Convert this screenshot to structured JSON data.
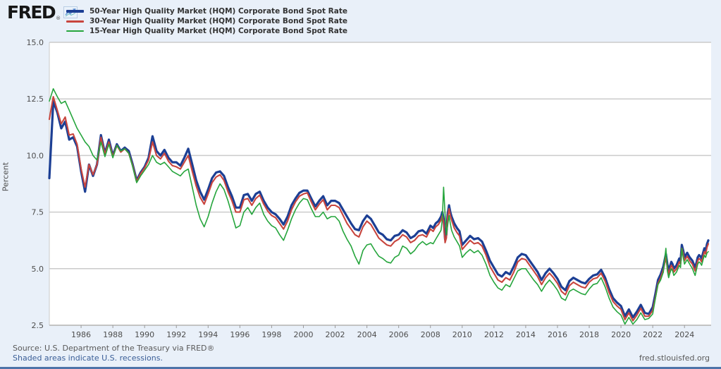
{
  "branding": {
    "logo_text": "FRED",
    "registered_mark": "®",
    "logo_icon": "sparkline-chart-icon"
  },
  "footer": {
    "source": "Source: U.S. Department of the Treasury via FRED®",
    "recessions_note": "Shaded areas indicate U.S. recessions.",
    "site_url": "fred.stlouisfed.org"
  },
  "colors": {
    "background": "#e9f0f9",
    "plot_background": "#ffffff",
    "gridline": "#cbcbcb",
    "axis_line": "#c3c3c3",
    "axis_text": "#4d4d4d",
    "legend_text": "#333333",
    "source_text": "#595959",
    "link_text": "#3a5e97",
    "bottom_bar": "#4e74a9"
  },
  "chart_data": {
    "type": "line",
    "title": "",
    "xlabel": "",
    "ylabel": "Percent",
    "legend_position": "top-left",
    "grid": true,
    "ylim": [
      2.5,
      15.0
    ],
    "xlim": [
      1984.0,
      2025.5
    ],
    "yticks": [
      2.5,
      5.0,
      7.5,
      10.0,
      12.5,
      15.0
    ],
    "ytick_labels": [
      "2.5",
      "5.0",
      "7.5",
      "10.0",
      "12.5",
      "15.0"
    ],
    "xticks": [
      1986,
      1988,
      1990,
      1992,
      1994,
      1996,
      1998,
      2000,
      2002,
      2004,
      2006,
      2008,
      2010,
      2012,
      2014,
      2016,
      2018,
      2020,
      2022,
      2024
    ],
    "x": [
      1984.0,
      1984.25,
      1984.5,
      1984.75,
      1985.0,
      1985.25,
      1985.5,
      1985.75,
      1986.0,
      1986.25,
      1986.5,
      1986.75,
      1987.0,
      1987.25,
      1987.5,
      1987.75,
      1988.0,
      1988.25,
      1988.5,
      1988.75,
      1989.0,
      1989.25,
      1989.5,
      1989.75,
      1990.0,
      1990.25,
      1990.5,
      1990.75,
      1991.0,
      1991.25,
      1991.5,
      1991.75,
      1992.0,
      1992.25,
      1992.5,
      1992.75,
      1993.0,
      1993.25,
      1993.5,
      1993.75,
      1994.0,
      1994.25,
      1994.5,
      1994.75,
      1995.0,
      1995.25,
      1995.5,
      1995.75,
      1996.0,
      1996.25,
      1996.5,
      1996.75,
      1997.0,
      1997.25,
      1997.5,
      1997.75,
      1998.0,
      1998.25,
      1998.5,
      1998.75,
      1999.0,
      1999.25,
      1999.5,
      1999.75,
      2000.0,
      2000.25,
      2000.5,
      2000.75,
      2001.0,
      2001.25,
      2001.5,
      2001.75,
      2002.0,
      2002.25,
      2002.5,
      2002.75,
      2003.0,
      2003.25,
      2003.5,
      2003.75,
      2004.0,
      2004.25,
      2004.5,
      2004.75,
      2005.0,
      2005.25,
      2005.5,
      2005.75,
      2006.0,
      2006.25,
      2006.5,
      2006.75,
      2007.0,
      2007.25,
      2007.5,
      2007.75,
      2008.0,
      2008.17,
      2008.33,
      2008.5,
      2008.67,
      2008.75,
      2008.83,
      2008.92,
      2009.0,
      2009.08,
      2009.17,
      2009.25,
      2009.33,
      2009.5,
      2009.67,
      2009.83,
      2010.0,
      2010.25,
      2010.5,
      2010.75,
      2011.0,
      2011.25,
      2011.5,
      2011.75,
      2012.0,
      2012.25,
      2012.5,
      2012.75,
      2013.0,
      2013.25,
      2013.5,
      2013.75,
      2014.0,
      2014.25,
      2014.5,
      2014.75,
      2015.0,
      2015.25,
      2015.5,
      2015.75,
      2016.0,
      2016.25,
      2016.5,
      2016.75,
      2017.0,
      2017.25,
      2017.5,
      2017.75,
      2018.0,
      2018.25,
      2018.5,
      2018.75,
      2019.0,
      2019.25,
      2019.5,
      2019.75,
      2020.0,
      2020.25,
      2020.5,
      2020.75,
      2021.0,
      2021.25,
      2021.5,
      2021.75,
      2022.0,
      2022.17,
      2022.33,
      2022.5,
      2022.67,
      2022.83,
      2022.92,
      2023.0,
      2023.08,
      2023.17,
      2023.25,
      2023.33,
      2023.5,
      2023.67,
      2023.75,
      2023.83,
      2023.92,
      2024.0,
      2024.08,
      2024.17,
      2024.25,
      2024.33,
      2024.5,
      2024.58,
      2024.67,
      2024.75,
      2024.83,
      2024.92,
      2025.0,
      2025.08,
      2025.17,
      2025.25,
      2025.33,
      2025.42,
      2025.5
    ],
    "series": [
      {
        "name": "50-Year High Quality Market (HQM) Corporate Bond Spot Rate",
        "color": "#1c3f94",
        "width": 3.2,
        "values": [
          9.0,
          12.4,
          11.9,
          11.2,
          11.5,
          10.7,
          10.8,
          10.4,
          9.3,
          8.4,
          9.6,
          9.1,
          9.6,
          10.9,
          10.1,
          10.7,
          10.0,
          10.5,
          10.2,
          10.35,
          10.2,
          9.6,
          8.9,
          9.25,
          9.5,
          9.9,
          10.85,
          10.2,
          10.0,
          10.25,
          9.9,
          9.7,
          9.7,
          9.55,
          9.9,
          10.3,
          9.6,
          8.9,
          8.4,
          8.05,
          8.5,
          9.0,
          9.25,
          9.3,
          9.1,
          8.6,
          8.2,
          7.7,
          7.7,
          8.25,
          8.3,
          8.0,
          8.3,
          8.4,
          8.0,
          7.7,
          7.5,
          7.4,
          7.2,
          6.95,
          7.3,
          7.8,
          8.1,
          8.35,
          8.45,
          8.45,
          8.1,
          7.75,
          8.0,
          8.2,
          7.8,
          8.0,
          8.0,
          7.9,
          7.6,
          7.3,
          7.0,
          6.75,
          6.7,
          7.1,
          7.35,
          7.2,
          6.9,
          6.6,
          6.5,
          6.3,
          6.25,
          6.45,
          6.5,
          6.7,
          6.6,
          6.35,
          6.45,
          6.65,
          6.7,
          6.55,
          6.9,
          6.8,
          7.0,
          7.1,
          7.3,
          7.5,
          7.2,
          6.3,
          6.5,
          7.4,
          7.8,
          7.5,
          7.3,
          7.0,
          6.8,
          6.65,
          6.05,
          6.25,
          6.45,
          6.3,
          6.35,
          6.2,
          5.8,
          5.35,
          5.05,
          4.75,
          4.65,
          4.85,
          4.75,
          5.1,
          5.5,
          5.65,
          5.6,
          5.35,
          5.1,
          4.85,
          4.5,
          4.8,
          5.0,
          4.8,
          4.55,
          4.2,
          4.05,
          4.45,
          4.6,
          4.5,
          4.4,
          4.35,
          4.55,
          4.7,
          4.75,
          4.95,
          4.6,
          4.1,
          3.7,
          3.5,
          3.35,
          2.9,
          3.2,
          2.85,
          3.1,
          3.4,
          3.05,
          3.0,
          3.3,
          3.9,
          4.5,
          4.75,
          5.1,
          5.65,
          5.2,
          4.9,
          5.1,
          5.3,
          5.2,
          5.0,
          5.15,
          5.45,
          5.35,
          6.05,
          5.8,
          5.5,
          5.6,
          5.7,
          5.6,
          5.5,
          5.35,
          5.2,
          5.05,
          5.25,
          5.5,
          5.6,
          5.55,
          5.45,
          5.7,
          5.9,
          5.8,
          6.1,
          6.25
        ]
      },
      {
        "name": "30-Year High Quality Market (HQM) Corporate Bond Spot Rate",
        "color": "#c8453e",
        "width": 2.1,
        "values": [
          11.6,
          12.6,
          12.0,
          11.4,
          11.7,
          10.9,
          10.95,
          10.5,
          9.4,
          8.6,
          9.6,
          9.15,
          9.6,
          10.8,
          10.05,
          10.6,
          9.95,
          10.45,
          10.15,
          10.3,
          10.1,
          9.55,
          8.85,
          9.2,
          9.45,
          9.8,
          10.6,
          10.0,
          9.85,
          10.1,
          9.75,
          9.55,
          9.5,
          9.4,
          9.7,
          10.0,
          9.3,
          8.65,
          8.15,
          7.85,
          8.3,
          8.8,
          9.05,
          9.15,
          8.9,
          8.4,
          8.0,
          7.5,
          7.5,
          8.05,
          8.1,
          7.8,
          8.1,
          8.25,
          7.85,
          7.55,
          7.35,
          7.25,
          7.0,
          6.75,
          7.1,
          7.6,
          7.95,
          8.2,
          8.3,
          8.35,
          7.95,
          7.6,
          7.85,
          8.05,
          7.6,
          7.8,
          7.8,
          7.7,
          7.35,
          7.0,
          6.75,
          6.5,
          6.4,
          6.85,
          7.1,
          6.95,
          6.65,
          6.35,
          6.2,
          6.05,
          6.0,
          6.2,
          6.3,
          6.5,
          6.4,
          6.15,
          6.25,
          6.45,
          6.5,
          6.4,
          6.75,
          6.65,
          6.85,
          6.95,
          7.15,
          7.35,
          7.05,
          6.15,
          6.35,
          7.25,
          7.65,
          7.35,
          7.15,
          6.8,
          6.6,
          6.45,
          5.85,
          6.05,
          6.25,
          6.1,
          6.15,
          6.0,
          5.6,
          5.1,
          4.8,
          4.5,
          4.4,
          4.6,
          4.5,
          4.85,
          5.3,
          5.45,
          5.4,
          5.15,
          4.9,
          4.65,
          4.3,
          4.6,
          4.8,
          4.6,
          4.35,
          4.0,
          3.85,
          4.25,
          4.4,
          4.3,
          4.2,
          4.15,
          4.4,
          4.55,
          4.6,
          4.8,
          4.45,
          3.95,
          3.55,
          3.35,
          3.2,
          2.75,
          3.05,
          2.7,
          2.95,
          3.25,
          2.9,
          2.9,
          3.15,
          3.75,
          4.35,
          4.6,
          4.95,
          5.5,
          5.05,
          4.75,
          4.95,
          5.15,
          5.05,
          4.85,
          5.0,
          5.3,
          5.2,
          5.9,
          5.65,
          5.35,
          5.45,
          5.55,
          5.45,
          5.35,
          5.2,
          5.05,
          4.9,
          5.1,
          5.35,
          5.45,
          5.4,
          5.3,
          5.55,
          5.75,
          5.65,
          5.95,
          6.1
        ]
      },
      {
        "name": "15-Year High Quality Market (HQM) Corporate Bond Spot Rate",
        "color": "#25a53c",
        "width": 1.6,
        "values": [
          12.4,
          12.95,
          12.6,
          12.3,
          12.4,
          12.0,
          11.6,
          11.2,
          10.9,
          10.6,
          10.4,
          10.0,
          9.8,
          10.6,
          9.95,
          10.5,
          9.9,
          10.45,
          10.2,
          10.3,
          10.1,
          9.5,
          8.8,
          9.1,
          9.35,
          9.6,
          10.0,
          9.7,
          9.6,
          9.7,
          9.5,
          9.3,
          9.2,
          9.1,
          9.3,
          9.4,
          8.6,
          7.8,
          7.2,
          6.85,
          7.3,
          7.9,
          8.4,
          8.75,
          8.5,
          8.0,
          7.4,
          6.8,
          6.9,
          7.5,
          7.7,
          7.4,
          7.7,
          7.9,
          7.4,
          7.1,
          6.9,
          6.8,
          6.5,
          6.25,
          6.7,
          7.2,
          7.6,
          7.9,
          8.1,
          8.05,
          7.65,
          7.3,
          7.3,
          7.5,
          7.2,
          7.3,
          7.3,
          7.1,
          6.65,
          6.3,
          6.0,
          5.55,
          5.2,
          5.8,
          6.05,
          6.1,
          5.8,
          5.55,
          5.45,
          5.3,
          5.25,
          5.5,
          5.6,
          6.0,
          5.9,
          5.65,
          5.8,
          6.05,
          6.2,
          6.05,
          6.15,
          6.1,
          6.3,
          6.5,
          6.7,
          7.2,
          8.6,
          7.4,
          6.5,
          6.9,
          7.35,
          7.0,
          6.7,
          6.4,
          6.2,
          6.0,
          5.5,
          5.7,
          5.85,
          5.7,
          5.8,
          5.6,
          5.2,
          4.7,
          4.4,
          4.15,
          4.05,
          4.3,
          4.2,
          4.55,
          4.9,
          5.0,
          5.0,
          4.75,
          4.5,
          4.3,
          4.0,
          4.3,
          4.5,
          4.3,
          4.05,
          3.7,
          3.6,
          4.0,
          4.1,
          4.0,
          3.9,
          3.85,
          4.1,
          4.3,
          4.35,
          4.6,
          4.2,
          3.7,
          3.3,
          3.1,
          2.95,
          2.55,
          2.85,
          2.55,
          2.75,
          3.05,
          2.75,
          2.8,
          3.0,
          3.7,
          4.3,
          4.5,
          4.85,
          5.9,
          4.9,
          4.6,
          4.8,
          5.0,
          4.9,
          4.7,
          4.85,
          5.15,
          5.05,
          5.9,
          5.5,
          5.2,
          5.3,
          5.4,
          5.3,
          5.2,
          5.0,
          4.85,
          4.7,
          4.95,
          5.2,
          5.3,
          5.25,
          5.15,
          5.4,
          5.6,
          5.5,
          5.7,
          5.75
        ]
      }
    ]
  }
}
